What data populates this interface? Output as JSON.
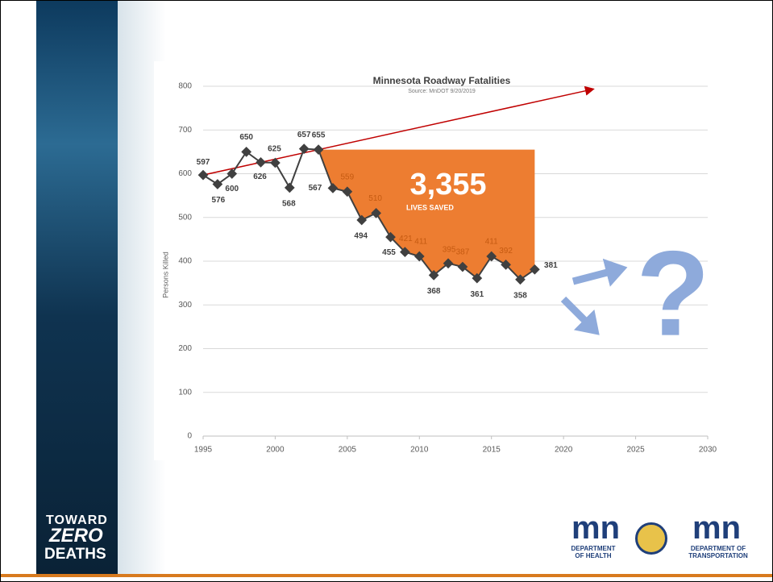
{
  "chart_data": {
    "type": "line",
    "title": "Minnesota Roadway Fatalities",
    "subtitle": "Source: MnDOT 9/20/2019",
    "y_label": "Persons Killed",
    "x": [
      1995,
      1996,
      1997,
      1998,
      1999,
      2000,
      2001,
      2002,
      2003,
      2004,
      2005,
      2006,
      2007,
      2008,
      2009,
      2010,
      2011,
      2012,
      2013,
      2014,
      2015,
      2016,
      2017,
      2018
    ],
    "series": [
      {
        "name": "Persons Killed",
        "color": "#404040",
        "values": [
          597,
          576,
          600,
          650,
          626,
          625,
          568,
          657,
          655,
          567,
          559,
          494,
          510,
          455,
          421,
          411,
          368,
          395,
          387,
          361,
          411,
          392,
          358,
          381
        ]
      }
    ],
    "xlim": [
      1995,
      2030
    ],
    "xticks": [
      1995,
      2000,
      2005,
      2010,
      2015,
      2020,
      2025,
      2030
    ],
    "ylim": [
      0,
      800
    ],
    "yticks": [
      0,
      100,
      200,
      300,
      400,
      500,
      600,
      700,
      800
    ],
    "grid": true,
    "trend_line": {
      "x": [
        1995,
        2022
      ],
      "y": [
        597,
        793
      ],
      "color": "#c00000"
    },
    "lives_saved": "3,355",
    "lives_saved_label": "LIVES SAVED",
    "highlight_color": "#ed7d31",
    "question": "?",
    "question_color": "#8eaadb"
  },
  "branding": {
    "toward": "TOWARD",
    "zero": "ZERO",
    "deaths": "DEATHS",
    "mn": "mn",
    "health_1": "DEPARTMENT",
    "health_2": "OF HEALTH",
    "transport_1": "DEPARTMENT OF",
    "transport_2": "TRANSPORTATION"
  }
}
